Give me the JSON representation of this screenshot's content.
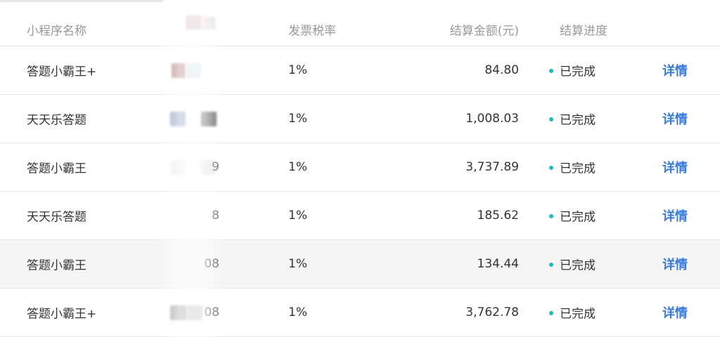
{
  "table": {
    "headers": {
      "name": "小程序名称",
      "tax": "发票税率",
      "amount": "结算金额(元)",
      "status": "结算进度"
    },
    "rows": [
      {
        "name": "答题小霸王+",
        "tax": "1%",
        "amount": "84.80",
        "status": "已完成",
        "action": "详情"
      },
      {
        "name": "天天乐答题",
        "tax": "1%",
        "amount": "1,008.03",
        "status": "已完成",
        "action": "详情"
      },
      {
        "name": "答题小霸王",
        "masked": "9",
        "tax": "1%",
        "amount": "3,737.89",
        "status": "已完成",
        "action": "详情"
      },
      {
        "name": "天天乐答题",
        "masked": "8",
        "tax": "1%",
        "amount": "185.62",
        "status": "已完成",
        "action": "详情"
      },
      {
        "name": "答题小霸王",
        "masked": "08",
        "tax": "1%",
        "amount": "134.44",
        "status": "已完成",
        "action": "详情"
      },
      {
        "name": "答题小霸王+",
        "masked": "08",
        "tax": "1%",
        "amount": "3,762.78",
        "status": "已完成",
        "action": "详情"
      }
    ]
  }
}
